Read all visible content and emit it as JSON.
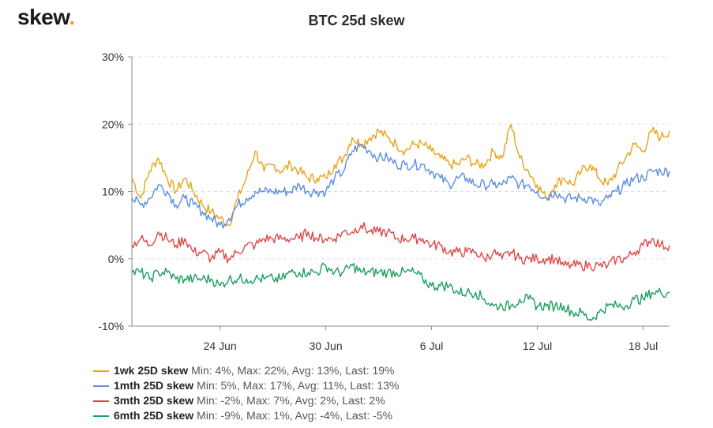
{
  "brand": {
    "name": "skew",
    "dot": "."
  },
  "chart_data": {
    "type": "line",
    "title": "BTC 25d skew",
    "xlabel": "",
    "ylabel": "",
    "ylim": [
      -10,
      30
    ],
    "yticks": [
      "30%",
      "20%",
      "10%",
      "0%",
      "-10%"
    ],
    "ytick_values": [
      30,
      20,
      10,
      0,
      -10
    ],
    "xticks": [
      "24 Jun",
      "30 Jun",
      "6 Jul",
      "12 Jul",
      "18 Jul"
    ],
    "xtick_days": [
      24,
      30,
      36,
      42,
      48
    ],
    "xlim_days": [
      19,
      49.5
    ],
    "grid": "horizontal-dashed",
    "series": [
      {
        "name": "1wk 25D skew",
        "stats": "Min: 4%, Max: 22%, Avg: 13%, Last: 19%",
        "color": "#e8a317",
        "x": [
          19,
          19.5,
          20,
          20.5,
          21,
          21.5,
          22,
          22.5,
          23,
          23.5,
          24,
          24.5,
          25,
          25.5,
          26,
          26.5,
          27,
          27.5,
          28,
          28.5,
          29,
          29.5,
          30,
          30.5,
          31,
          31.5,
          32,
          32.5,
          33,
          33.5,
          34,
          34.5,
          35,
          35.5,
          36,
          36.5,
          37,
          37.5,
          38,
          38.5,
          39,
          39.5,
          40,
          40.5,
          41,
          41.5,
          42,
          42.5,
          43,
          43.5,
          44,
          44.5,
          45,
          45.5,
          46,
          46.5,
          47,
          47.5,
          48,
          48.5,
          49,
          49.5
        ],
        "values": [
          12,
          9,
          13,
          15,
          12,
          10,
          12,
          10,
          8,
          7,
          6,
          5,
          9,
          12,
          16,
          13,
          14,
          13,
          14,
          13,
          12,
          12,
          12,
          14,
          15,
          18,
          17,
          18,
          19,
          18,
          17,
          16,
          17,
          17,
          16,
          15,
          14,
          14,
          15,
          14,
          14,
          16,
          15,
          20,
          15,
          13,
          11,
          9,
          11,
          12,
          11,
          13,
          14,
          12,
          11,
          13,
          15,
          17,
          16,
          19,
          18,
          19
        ]
      },
      {
        "name": "1mth 25D skew",
        "stats": "Min: 5%, Max: 17%, Avg: 11%, Last: 13%",
        "color": "#5b8ee0",
        "x": [
          19,
          19.5,
          20,
          20.5,
          21,
          21.5,
          22,
          22.5,
          23,
          23.5,
          24,
          24.5,
          25,
          25.5,
          26,
          26.5,
          27,
          27.5,
          28,
          28.5,
          29,
          29.5,
          30,
          30.5,
          31,
          31.5,
          32,
          32.5,
          33,
          33.5,
          34,
          34.5,
          35,
          35.5,
          36,
          36.5,
          37,
          37.5,
          38,
          38.5,
          39,
          39.5,
          40,
          40.5,
          41,
          41.5,
          42,
          42.5,
          43,
          43.5,
          44,
          44.5,
          45,
          45.5,
          46,
          46.5,
          47,
          47.5,
          48,
          48.5,
          49,
          49.5
        ],
        "values": [
          9,
          8,
          9,
          11,
          10,
          8,
          9,
          8,
          7,
          6,
          5,
          6,
          8,
          9,
          10,
          10,
          10,
          10,
          10,
          11,
          10,
          10,
          10,
          12,
          13,
          16,
          17,
          16,
          15,
          15,
          14,
          14,
          14,
          14,
          13,
          12,
          11,
          12,
          12,
          11,
          11,
          11,
          11,
          12,
          11,
          11,
          10,
          9,
          10,
          9,
          9,
          9,
          9,
          8,
          9,
          10,
          11,
          12,
          12,
          13,
          13,
          13
        ]
      },
      {
        "name": "3mth 25D skew",
        "stats": "Min: -2%, Max: 7%, Avg: 2%, Last: 2%",
        "color": "#e04848",
        "x": [
          19,
          19.5,
          20,
          20.5,
          21,
          21.5,
          22,
          22.5,
          23,
          23.5,
          24,
          24.5,
          25,
          25.5,
          26,
          26.5,
          27,
          27.5,
          28,
          28.5,
          29,
          29.5,
          30,
          30.5,
          31,
          31.5,
          32,
          32.5,
          33,
          33.5,
          34,
          34.5,
          35,
          35.5,
          36,
          36.5,
          37,
          37.5,
          38,
          38.5,
          39,
          39.5,
          40,
          40.5,
          41,
          41.5,
          42,
          42.5,
          43,
          43.5,
          44,
          44.5,
          45,
          45.5,
          46,
          46.5,
          47,
          47.5,
          48,
          48.5,
          49,
          49.5
        ],
        "values": [
          2,
          3,
          2,
          4,
          3,
          2,
          3,
          1,
          1,
          0,
          1,
          0,
          1,
          2,
          2,
          3,
          3,
          3,
          3,
          3,
          4,
          3,
          3,
          3,
          4,
          4,
          5,
          4,
          4,
          4,
          3,
          3,
          3,
          3,
          2,
          2,
          1,
          1,
          1,
          1,
          0,
          1,
          0,
          1,
          0,
          0,
          0,
          0,
          0,
          -1,
          -1,
          -1,
          -1,
          -1,
          -1,
          0,
          0,
          1,
          2,
          3,
          2,
          2
        ]
      },
      {
        "name": "6mth 25D skew",
        "stats": "Min: -9%, Max: 1%, Avg: -4%, Last: -5%",
        "color": "#1e9e5f",
        "x": [
          19,
          19.5,
          20,
          20.5,
          21,
          21.5,
          22,
          22.5,
          23,
          23.5,
          24,
          24.5,
          25,
          25.5,
          26,
          26.5,
          27,
          27.5,
          28,
          28.5,
          29,
          29.5,
          30,
          30.5,
          31,
          31.5,
          32,
          32.5,
          33,
          33.5,
          34,
          34.5,
          35,
          35.5,
          36,
          36.5,
          37,
          37.5,
          38,
          38.5,
          39,
          39.5,
          40,
          40.5,
          41,
          41.5,
          42,
          42.5,
          43,
          43.5,
          44,
          44.5,
          45,
          45.5,
          46,
          46.5,
          47,
          47.5,
          48,
          48.5,
          49,
          49.5
        ],
        "values": [
          -2,
          -2,
          -3,
          -2,
          -2,
          -3,
          -3,
          -3,
          -3,
          -3,
          -4,
          -3,
          -3,
          -3,
          -3,
          -3,
          -3,
          -3,
          -2,
          -2,
          -2,
          -2,
          -1,
          -2,
          -2,
          -1,
          -2,
          -2,
          -2,
          -2,
          -2,
          -2,
          -2,
          -3,
          -4,
          -4,
          -4,
          -5,
          -5,
          -5,
          -6,
          -7,
          -7,
          -7,
          -6,
          -6,
          -7,
          -7,
          -7,
          -7,
          -8,
          -8,
          -9,
          -8,
          -7,
          -7,
          -7,
          -6,
          -6,
          -5,
          -5,
          -5
        ]
      }
    ]
  }
}
